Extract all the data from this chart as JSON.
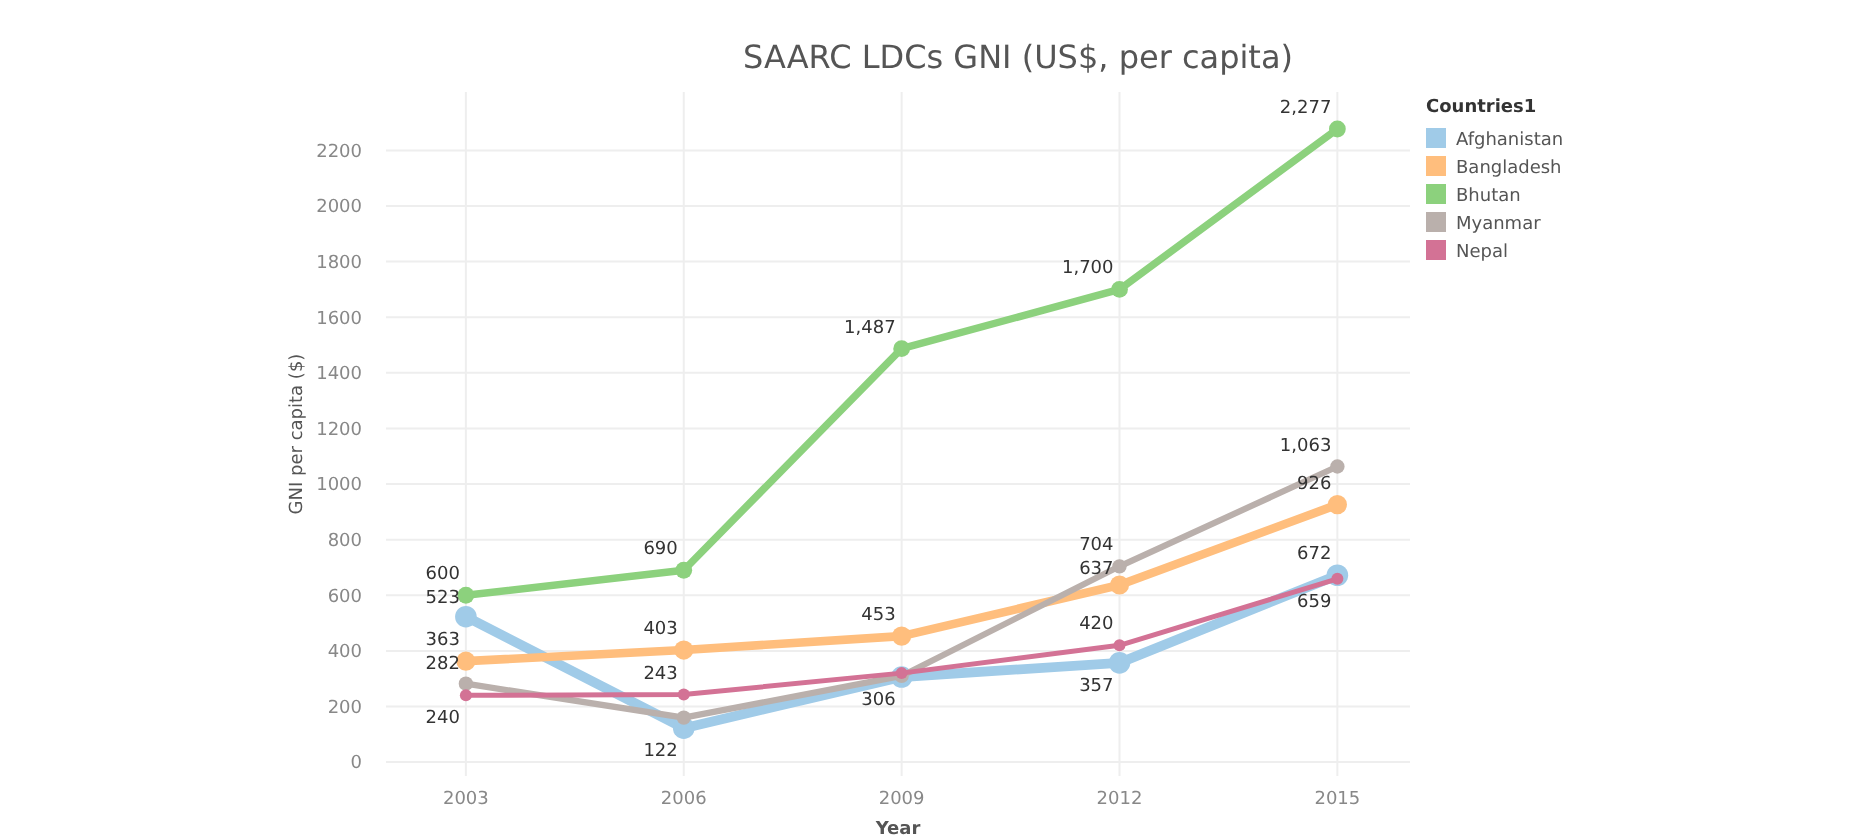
{
  "chart_data": {
    "type": "line",
    "title": "SAARC LDCs GNI (US$, per capita)",
    "xlabel": "Year",
    "ylabel": "GNI per capita ($)",
    "legend_title": "Countries1",
    "x": [
      2003,
      2006,
      2009,
      2012,
      2015
    ],
    "xlim": [
      2001.9,
      2016
    ],
    "xticks": [
      2003,
      2006,
      2009,
      2012,
      2015
    ],
    "ylim": [
      -50,
      2410
    ],
    "yticks": [
      0,
      200,
      400,
      600,
      800,
      1000,
      1200,
      1400,
      1600,
      1800,
      2000,
      2200
    ],
    "grid": true,
    "legend": "top right",
    "marker": "circle",
    "line_style": "solid",
    "series": [
      {
        "name": "Afghanistan",
        "color": "#a0cbe8",
        "values": [
          523,
          122,
          306,
          357,
          672
        ],
        "value_labels": [
          "523",
          "122",
          "306",
          "357",
          "672"
        ]
      },
      {
        "name": "Bangladesh",
        "color": "#ffbe7d",
        "values": [
          363,
          403,
          453,
          637,
          926
        ],
        "value_labels": [
          "363",
          "403",
          "453",
          "637",
          "926"
        ]
      },
      {
        "name": "Bhutan",
        "color": "#8cd17d",
        "values": [
          600,
          690,
          1487,
          1700,
          2277
        ],
        "value_labels": [
          "600",
          "690",
          "1,487",
          "1,700",
          "2,277"
        ]
      },
      {
        "name": "Myanmar",
        "color": "#bab0ac",
        "values": [
          282,
          160,
          310,
          704,
          1063
        ],
        "value_labels": [
          "282",
          null,
          null,
          "704",
          "1,063"
        ]
      },
      {
        "name": "Nepal",
        "color": "#d37295",
        "values": [
          240,
          243,
          320,
          420,
          659
        ],
        "value_labels": [
          "240",
          "243",
          null,
          "420",
          "659"
        ]
      }
    ]
  }
}
